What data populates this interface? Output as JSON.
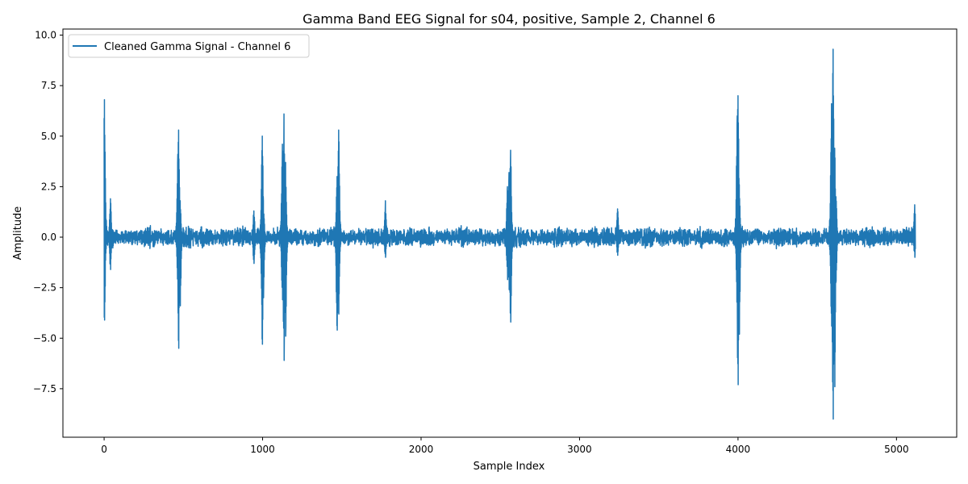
{
  "chart_data": {
    "type": "line",
    "title": "Gamma Band EEG Signal for s04, positive, Sample 2, Channel 6",
    "xlabel": "Sample Index",
    "ylabel": "Amplitude",
    "xlim": [
      -260,
      5380
    ],
    "ylim": [
      -9.9,
      10.3
    ],
    "xticks": [
      0,
      1000,
      2000,
      3000,
      4000,
      5000
    ],
    "xtick_labels": [
      "0",
      "1000",
      "2000",
      "3000",
      "4000",
      "5000"
    ],
    "yticks": [
      -7.5,
      -5.0,
      -2.5,
      0.0,
      2.5,
      5.0,
      7.5,
      10.0
    ],
    "ytick_labels": [
      "−7.5",
      "−5.0",
      "−2.5",
      "0.0",
      "2.5",
      "5.0",
      "7.5",
      "10.0"
    ],
    "grid": false,
    "legend_position": "upper-left",
    "n_samples": 5120,
    "series": [
      {
        "name": "Cleaned Gamma Signal - Channel 6",
        "color": "#1f77b4",
        "baseline_noise_amplitude": 0.45,
        "bursts": [
          {
            "x": 2,
            "max": 6.8,
            "min": -4.1
          },
          {
            "x": 40,
            "max": 1.9,
            "min": -1.6
          },
          {
            "x": 465,
            "max": 4.1,
            "min": -2.4
          },
          {
            "x": 470,
            "max": 5.3,
            "min": -5.5
          },
          {
            "x": 480,
            "max": 1.8,
            "min": -3.4
          },
          {
            "x": 945,
            "max": 1.3,
            "min": -1.3
          },
          {
            "x": 998,
            "max": 5.0,
            "min": -5.3
          },
          {
            "x": 1005,
            "max": 1.8,
            "min": -3.0
          },
          {
            "x": 1125,
            "max": 4.6,
            "min": -3.1
          },
          {
            "x": 1135,
            "max": 6.1,
            "min": -6.1
          },
          {
            "x": 1145,
            "max": 3.7,
            "min": -4.9
          },
          {
            "x": 1470,
            "max": 3.0,
            "min": -4.6
          },
          {
            "x": 1480,
            "max": 5.3,
            "min": -3.8
          },
          {
            "x": 1775,
            "max": 1.8,
            "min": -1.0
          },
          {
            "x": 2545,
            "max": 2.5,
            "min": -2.1
          },
          {
            "x": 2555,
            "max": 3.2,
            "min": -2.6
          },
          {
            "x": 2565,
            "max": 4.3,
            "min": -4.2
          },
          {
            "x": 3240,
            "max": 1.4,
            "min": -0.9
          },
          {
            "x": 3995,
            "max": 6.0,
            "min": -3.7
          },
          {
            "x": 4000,
            "max": 7.0,
            "min": -7.3
          },
          {
            "x": 4008,
            "max": 2.6,
            "min": -4.8
          },
          {
            "x": 4590,
            "max": 6.6,
            "min": -4.4
          },
          {
            "x": 4600,
            "max": 9.3,
            "min": -9.0
          },
          {
            "x": 4610,
            "max": 4.4,
            "min": -7.4
          },
          {
            "x": 4618,
            "max": 2.0,
            "min": -2.2
          },
          {
            "x": 5115,
            "max": 1.6,
            "min": -1.0
          }
        ]
      }
    ]
  }
}
